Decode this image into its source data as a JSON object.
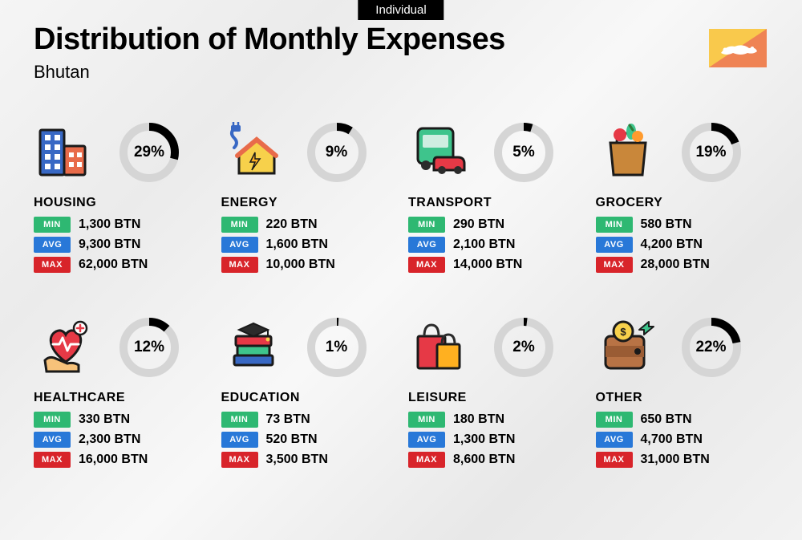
{
  "tag": "Individual",
  "title": "Distribution of Monthly Expenses",
  "subtitle": "Bhutan",
  "labels": {
    "min": "MIN",
    "avg": "AVG",
    "max": "MAX"
  },
  "colors": {
    "min_badge": "#2eb872",
    "avg_badge": "#2878d8",
    "max_badge": "#d8242a",
    "donut_track": "#d5d5d5",
    "donut_fill": "#000000"
  },
  "flag": {
    "upper": "#f9c94c",
    "lower": "#ef8354",
    "dragon": "#ffffff"
  },
  "currency": "BTN",
  "categories": [
    {
      "key": "housing",
      "name": "HOUSING",
      "pct": 29,
      "min": "1,300 BTN",
      "avg": "9,300 BTN",
      "max": "62,000 BTN"
    },
    {
      "key": "energy",
      "name": "ENERGY",
      "pct": 9,
      "min": "220 BTN",
      "avg": "1,600 BTN",
      "max": "10,000 BTN"
    },
    {
      "key": "transport",
      "name": "TRANSPORT",
      "pct": 5,
      "min": "290 BTN",
      "avg": "2,100 BTN",
      "max": "14,000 BTN"
    },
    {
      "key": "grocery",
      "name": "GROCERY",
      "pct": 19,
      "min": "580 BTN",
      "avg": "4,200 BTN",
      "max": "28,000 BTN"
    },
    {
      "key": "healthcare",
      "name": "HEALTHCARE",
      "pct": 12,
      "min": "330 BTN",
      "avg": "2,300 BTN",
      "max": "16,000 BTN"
    },
    {
      "key": "education",
      "name": "EDUCATION",
      "pct": 1,
      "min": "73 BTN",
      "avg": "520 BTN",
      "max": "3,500 BTN"
    },
    {
      "key": "leisure",
      "name": "LEISURE",
      "pct": 2,
      "min": "180 BTN",
      "avg": "1,300 BTN",
      "max": "8,600 BTN"
    },
    {
      "key": "other",
      "name": "OTHER",
      "pct": 22,
      "min": "650 BTN",
      "avg": "4,700 BTN",
      "max": "31,000 BTN"
    }
  ],
  "icons": {
    "housing": {
      "primary": "#3868c4",
      "accent": "#e86b4a"
    },
    "energy": {
      "house": "#f7d14b",
      "roof": "#e86b4a",
      "plug": "#3868c4",
      "bolt": "#ffb020"
    },
    "transport": {
      "bus": "#3ec48c",
      "car": "#e63946",
      "wheel": "#2b2b2b"
    },
    "grocery": {
      "bag": "#c9873a",
      "veg1": "#e63946",
      "veg2": "#3ec48c",
      "veg3": "#ff9b2e"
    },
    "healthcare": {
      "heart": "#e63946",
      "hand": "#f7c27a",
      "cross": "#e63946"
    },
    "education": {
      "cap": "#2b2b2b",
      "book1": "#e63946",
      "book2": "#3ec48c",
      "book3": "#3868c4"
    },
    "leisure": {
      "bag1": "#e63946",
      "bag2": "#ffb020",
      "handle": "#2b2b2b"
    },
    "other": {
      "wallet": "#b87345",
      "coin": "#f7d14b",
      "arrow": "#3ec48c"
    }
  }
}
